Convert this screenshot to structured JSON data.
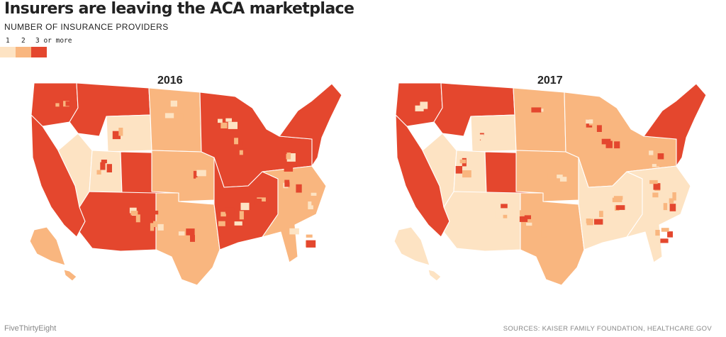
{
  "header": {
    "title": "Insurers are leaving the ACA marketplace",
    "subtitle": "NUMBER OF INSURANCE PROVIDERS"
  },
  "legend": {
    "items": [
      {
        "label": "1",
        "color": "#fde3c3"
      },
      {
        "label": "2",
        "color": "#f9b67f"
      },
      {
        "label": "3 or more",
        "color": "#e4472e"
      }
    ]
  },
  "maps": [
    {
      "title": "2016",
      "regions": {
        "west": 3,
        "pacific": 3,
        "mountain_n": 3,
        "wyoming": 1,
        "utah": 1,
        "nevada": 1,
        "colorado": 3,
        "southwest": 3,
        "dakotas": 2,
        "central_plains": 2,
        "texas": 2,
        "midwest": 3,
        "south": 3,
        "southeast": 2,
        "northeast": 3,
        "alaska": 2,
        "hawaii": 2
      }
    },
    {
      "title": "2017",
      "regions": {
        "west": 3,
        "pacific": 3,
        "mountain_n": 3,
        "wyoming": 1,
        "utah": 1,
        "nevada": 1,
        "colorado": 3,
        "southwest": 1,
        "dakotas": 2,
        "central_plains": 2,
        "texas": 2,
        "midwest": 2,
        "south": 1,
        "southeast": 1,
        "northeast": 3,
        "alaska": 1,
        "hawaii": 1
      }
    }
  ],
  "footer": {
    "brand": "FiveThirtyEight",
    "sources": "SOURCES: KAISER FAMILY FOUNDATION, HEALTHCARE.GOV"
  }
}
